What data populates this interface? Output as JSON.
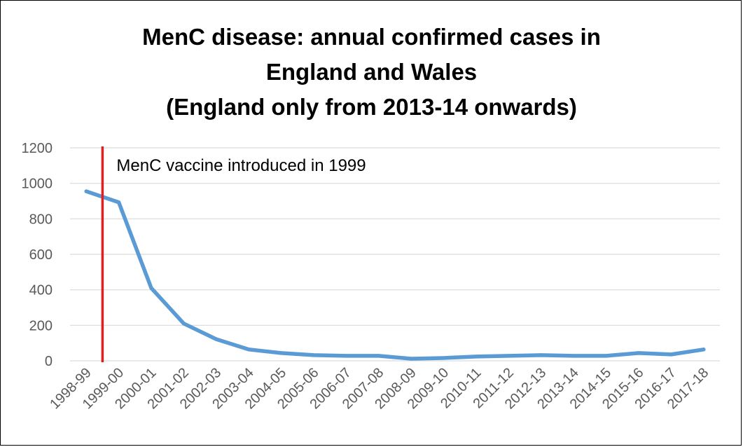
{
  "chart_data": {
    "type": "line",
    "title": [
      "MenC disease: annual confirmed cases in",
      "England and Wales",
      "(England only from 2013-14 onwards)"
    ],
    "xlabel": "",
    "ylabel": "",
    "ylim": [
      0,
      1200
    ],
    "yticks": [
      "0",
      "200",
      "400",
      "600",
      "800",
      "1000",
      "1200"
    ],
    "ytick_values": [
      0,
      200,
      400,
      600,
      800,
      1000,
      1200
    ],
    "grid": true,
    "legend": "none",
    "categories": [
      "1998-99",
      "1999-00",
      "2000-01",
      "2001-02",
      "2002-03",
      "2003-04",
      "2004-05",
      "2005-06",
      "2006-07",
      "2007-08",
      "2008-09",
      "2009-10",
      "2010-11",
      "2011-12",
      "2012-13",
      "2013-14",
      "2014-15",
      "2015-16",
      "2016-17",
      "2017-18"
    ],
    "series": [
      {
        "name": "Confirmed cases",
        "color": "#5b9bd5",
        "values": [
          955,
          893,
          410,
          210,
          122,
          64,
          44,
          32,
          28,
          28,
          12,
          16,
          24,
          28,
          32,
          28,
          28,
          44,
          36,
          64
        ]
      }
    ],
    "annotation": {
      "text": "MenC vaccine introduced in 1999",
      "line_color": "#e02020",
      "position_x_category_index": 0.5
    }
  }
}
